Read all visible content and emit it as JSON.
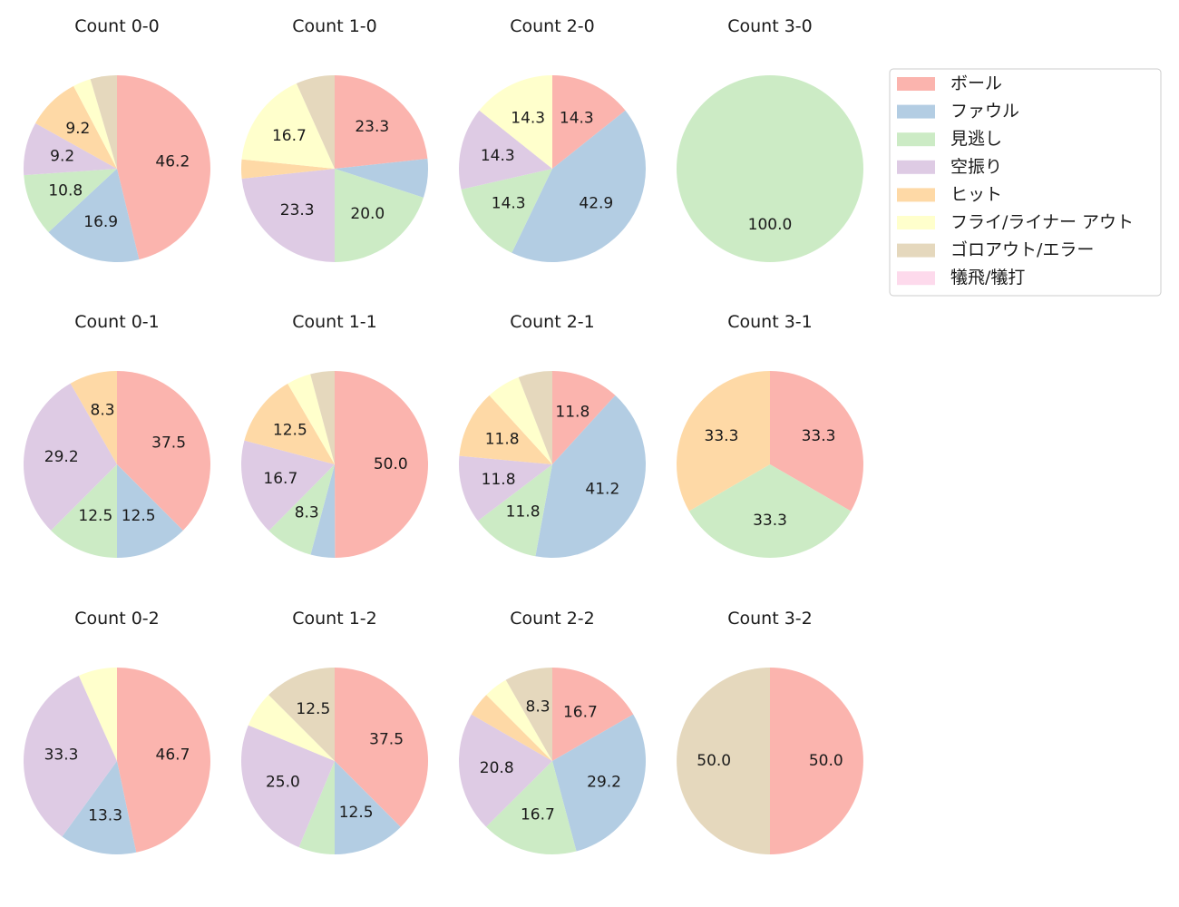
{
  "legend": {
    "items": [
      {
        "label": "ボール",
        "color": "#fbb4ae"
      },
      {
        "label": "ファウル",
        "color": "#b3cde3"
      },
      {
        "label": "見逃し",
        "color": "#ccebc5"
      },
      {
        "label": "空振り",
        "color": "#decbe4"
      },
      {
        "label": "ヒット",
        "color": "#fed9a6"
      },
      {
        "label": "フライ/ライナー アウト",
        "color": "#ffffcc"
      },
      {
        "label": "ゴロアウト/エラー",
        "color": "#e5d8bd"
      },
      {
        "label": "犠飛/犠打",
        "color": "#fddaec"
      }
    ]
  },
  "chart_data": [
    {
      "type": "pie",
      "title": "Count 0-0",
      "values": [
        46.2,
        16.9,
        10.8,
        9.2,
        9.2,
        3.1,
        4.6,
        0
      ],
      "labels": [
        "46.2",
        "16.9",
        "10.8",
        "9.2",
        "9.2",
        "",
        "",
        ""
      ]
    },
    {
      "type": "pie",
      "title": "Count 1-0",
      "values": [
        23.3,
        6.7,
        20.0,
        23.3,
        3.3,
        16.7,
        6.7,
        0
      ],
      "labels": [
        "23.3",
        "",
        "20.0",
        "23.3",
        "",
        "16.7",
        "",
        ""
      ]
    },
    {
      "type": "pie",
      "title": "Count 2-0",
      "values": [
        14.3,
        42.9,
        14.3,
        14.3,
        0,
        14.3,
        0,
        0
      ],
      "labels": [
        "14.3",
        "42.9",
        "14.3",
        "14.3",
        "",
        "14.3",
        "",
        ""
      ]
    },
    {
      "type": "pie",
      "title": "Count 3-0",
      "values": [
        0,
        0,
        100.0,
        0,
        0,
        0,
        0,
        0
      ],
      "labels": [
        "",
        "",
        "100.0",
        "",
        "",
        "",
        "",
        ""
      ]
    },
    {
      "type": "pie",
      "title": "Count 0-1",
      "values": [
        37.5,
        12.5,
        12.5,
        29.2,
        8.3,
        0,
        0,
        0
      ],
      "labels": [
        "37.5",
        "12.5",
        "12.5",
        "29.2",
        "8.3",
        "",
        "",
        ""
      ]
    },
    {
      "type": "pie",
      "title": "Count 1-1",
      "values": [
        50.0,
        4.2,
        8.3,
        16.7,
        12.5,
        4.2,
        4.2,
        0
      ],
      "labels": [
        "50.0",
        "",
        "8.3",
        "16.7",
        "12.5",
        "",
        "",
        ""
      ]
    },
    {
      "type": "pie",
      "title": "Count 2-1",
      "values": [
        11.8,
        41.2,
        11.8,
        11.8,
        11.8,
        5.9,
        5.9,
        0
      ],
      "labels": [
        "11.8",
        "41.2",
        "11.8",
        "11.8",
        "11.8",
        "",
        "",
        ""
      ]
    },
    {
      "type": "pie",
      "title": "Count 3-1",
      "values": [
        33.3,
        0,
        33.3,
        0,
        33.3,
        0,
        0,
        0
      ],
      "labels": [
        "33.3",
        "",
        "33.3",
        "",
        "33.3",
        "",
        "",
        ""
      ]
    },
    {
      "type": "pie",
      "title": "Count 0-2",
      "values": [
        46.7,
        13.3,
        0,
        33.3,
        0,
        6.7,
        0,
        0
      ],
      "labels": [
        "46.7",
        "13.3",
        "",
        "33.3",
        "",
        "",
        "",
        ""
      ]
    },
    {
      "type": "pie",
      "title": "Count 1-2",
      "values": [
        37.5,
        12.5,
        6.25,
        25.0,
        0,
        6.25,
        12.5,
        0
      ],
      "labels": [
        "37.5",
        "12.5",
        "",
        "25.0",
        "",
        "",
        "12.5",
        ""
      ]
    },
    {
      "type": "pie",
      "title": "Count 2-2",
      "values": [
        16.7,
        29.2,
        16.7,
        20.8,
        4.2,
        4.2,
        8.3,
        0
      ],
      "labels": [
        "16.7",
        "29.2",
        "16.7",
        "20.8",
        "",
        "",
        "8.3",
        ""
      ]
    },
    {
      "type": "pie",
      "title": "Count 3-2",
      "values": [
        50.0,
        0,
        0,
        0,
        0,
        0,
        50.0,
        0
      ],
      "labels": [
        "50.0",
        "",
        "",
        "",
        "",
        "",
        "50.0",
        ""
      ]
    }
  ]
}
